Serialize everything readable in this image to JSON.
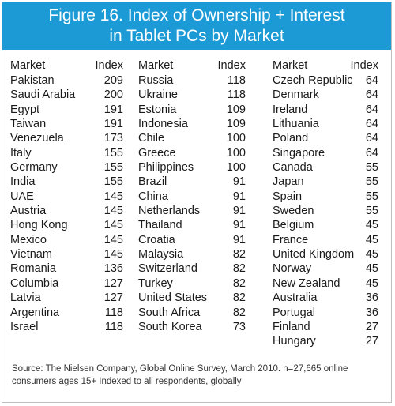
{
  "header": {
    "title_line1": "Figure 16. Index of Ownership + Interest",
    "title_line2": "in Tablet PCs by Market"
  },
  "columns_header": {
    "market": "Market",
    "index": "Index"
  },
  "chart_data": {
    "type": "table",
    "title": "Figure 16. Index of Ownership + Interest in Tablet PCs by Market",
    "columns": [
      "Market",
      "Index"
    ],
    "rows": [
      [
        "Pakistan",
        "209"
      ],
      [
        "Saudi Arabia",
        "200"
      ],
      [
        "Egypt",
        "191"
      ],
      [
        "Taiwan",
        "191"
      ],
      [
        "Venezuela",
        "173"
      ],
      [
        "Italy",
        "155"
      ],
      [
        "Germany",
        "155"
      ],
      [
        "India",
        "155"
      ],
      [
        "UAE",
        "145"
      ],
      [
        "Austria",
        "145"
      ],
      [
        "Hong Kong",
        "145"
      ],
      [
        "Mexico",
        "145"
      ],
      [
        "Vietnam",
        "145"
      ],
      [
        "Romania",
        "136"
      ],
      [
        "Columbia",
        "127"
      ],
      [
        "Latvia",
        "127"
      ],
      [
        "Argentina",
        "118"
      ],
      [
        "Israel",
        "118"
      ],
      [
        "Russia",
        "118"
      ],
      [
        "Ukraine",
        "118"
      ],
      [
        "Estonia",
        "109"
      ],
      [
        "Indonesia",
        "109"
      ],
      [
        "Chile",
        "100"
      ],
      [
        "Greece",
        "100"
      ],
      [
        "Philippines",
        "100"
      ],
      [
        "Brazil",
        "91"
      ],
      [
        "China",
        "91"
      ],
      [
        "Netherlands",
        "91"
      ],
      [
        "Thailand",
        "91"
      ],
      [
        "Croatia",
        "91"
      ],
      [
        "Malaysia",
        "82"
      ],
      [
        "Switzerland",
        "82"
      ],
      [
        "Turkey",
        "82"
      ],
      [
        "United States",
        "82"
      ],
      [
        "South Africa",
        "82"
      ],
      [
        "South Korea",
        "73"
      ],
      [
        "Czech Republic",
        "64"
      ],
      [
        "Denmark",
        "64"
      ],
      [
        "Ireland",
        "64"
      ],
      [
        "Lithuania",
        "64"
      ],
      [
        "Poland",
        "64"
      ],
      [
        "Singapore",
        "64"
      ],
      [
        "Canada",
        "55"
      ],
      [
        "Japan",
        "55"
      ],
      [
        "Spain",
        "55"
      ],
      [
        "Sweden",
        "55"
      ],
      [
        "Belgium",
        "45"
      ],
      [
        "France",
        "45"
      ],
      [
        "United Kingdom",
        "45"
      ],
      [
        "Norway",
        "45"
      ],
      [
        "New Zealand",
        "45"
      ],
      [
        "Australia",
        "36"
      ],
      [
        "Portugal",
        "36"
      ],
      [
        "Finland",
        "27"
      ],
      [
        "Hungary",
        "27"
      ]
    ],
    "column_groups": [
      18,
      18,
      19
    ]
  },
  "source_text": "Source: The Nielsen Company, Global Online Survey, March 2010. n=27,665 online consumers ages 15+  Indexed to all respondents, globally",
  "colors": {
    "header_bg": "#1b9ad6",
    "header_text": "#ffffff",
    "border": "#bfbfbf"
  }
}
